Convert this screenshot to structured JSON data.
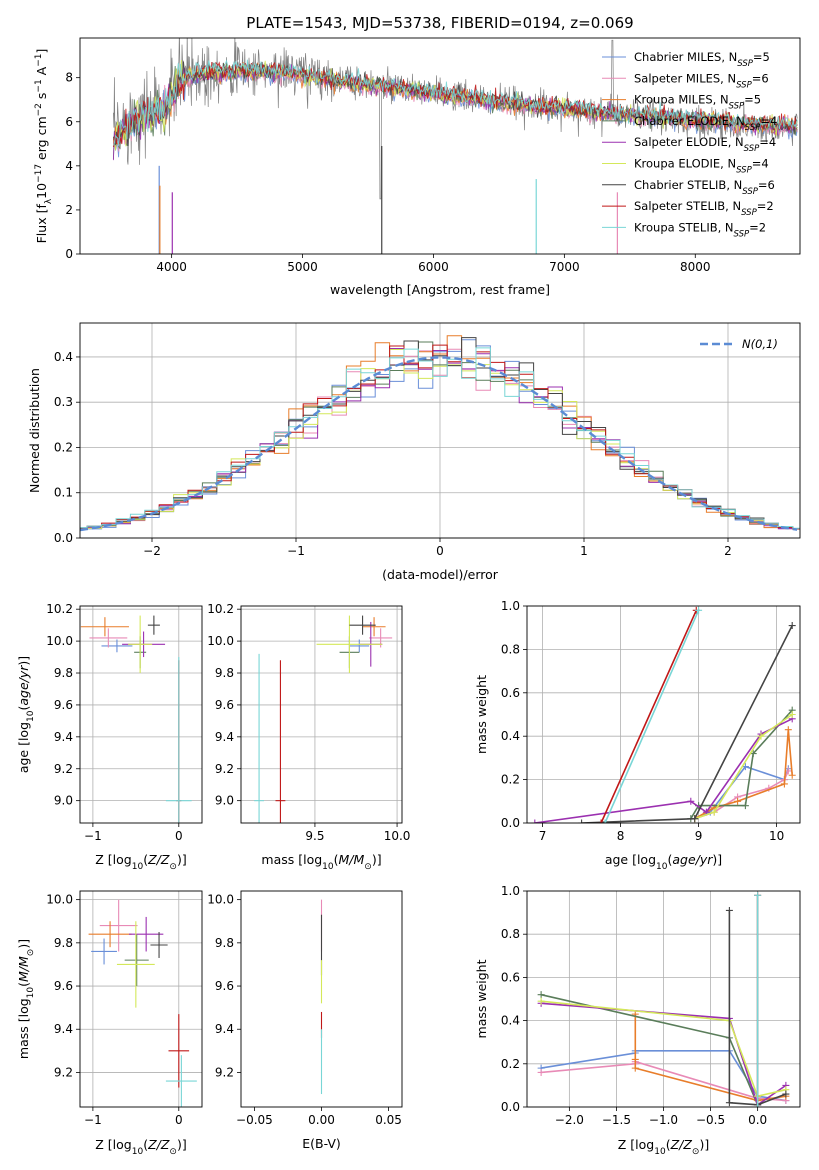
{
  "figure_title": "PLATE=1543, MJD=53738, FIBERID=0194, z=0.069",
  "models": [
    {
      "name": "Chabrier MILES",
      "nssp": "5",
      "color": "#6a8fd8"
    },
    {
      "name": "Salpeter MILES",
      "nssp": "6",
      "color": "#e88ab6"
    },
    {
      "name": "Kroupa MILES",
      "nssp": "5",
      "color": "#e87d2a"
    },
    {
      "name": "Chabrier ELODIE",
      "nssp": "4",
      "color": "#5a7d5a"
    },
    {
      "name": "Salpeter ELODIE",
      "nssp": "4",
      "color": "#9b30b0"
    },
    {
      "name": "Kroupa ELODIE",
      "nssp": "4",
      "color": "#d4e85a"
    },
    {
      "name": "Chabrier STELIB",
      "nssp": "6",
      "color": "#444444"
    },
    {
      "name": "Salpeter STELIB",
      "nssp": "2",
      "color": "#c01818"
    },
    {
      "name": "Kroupa STELIB",
      "nssp": "2",
      "color": "#79d6d6"
    }
  ],
  "nssp_prefix": "N",
  "nssp_sub": "SSP",
  "chart_data": [
    {
      "id": "spectrum",
      "type": "line",
      "xlabel": "wavelength [Angstrom, rest frame]",
      "ylabel": "Flux [f_λ 10^-17 erg cm^-2 s^-1 A^-1]",
      "xlim": [
        3300,
        8800
      ],
      "ylim": [
        0,
        9.8
      ],
      "xticks": [
        4000,
        5000,
        6000,
        7000,
        8000
      ],
      "yticks": [
        0,
        2,
        4,
        6,
        8
      ],
      "grid": false,
      "legend": "right",
      "data_color": "#808080",
      "data_knots": [
        [
          3550,
          5.4
        ],
        [
          3700,
          6.2
        ],
        [
          3800,
          6.6
        ],
        [
          3950,
          6.6
        ],
        [
          4050,
          7.9
        ],
        [
          4200,
          8.3
        ],
        [
          4500,
          8.4
        ],
        [
          4900,
          8.3
        ],
        [
          5200,
          8.0
        ],
        [
          5600,
          7.6
        ],
        [
          6000,
          7.3
        ],
        [
          6500,
          6.9
        ],
        [
          7000,
          6.6
        ],
        [
          7500,
          6.3
        ],
        [
          8000,
          6.0
        ],
        [
          8400,
          5.8
        ],
        [
          8700,
          5.7
        ]
      ],
      "model_knots": [
        [
          3550,
          5.0
        ],
        [
          3700,
          5.9
        ],
        [
          3800,
          6.3
        ],
        [
          3950,
          6.5
        ],
        [
          4050,
          7.8
        ],
        [
          4200,
          8.2
        ],
        [
          4500,
          8.3
        ],
        [
          4900,
          8.2
        ],
        [
          5200,
          7.9
        ],
        [
          5600,
          7.6
        ],
        [
          6000,
          7.3
        ],
        [
          6500,
          6.9
        ],
        [
          7000,
          6.6
        ],
        [
          7500,
          6.3
        ],
        [
          8000,
          6.1
        ],
        [
          8400,
          5.9
        ],
        [
          8700,
          5.8
        ]
      ]
    },
    {
      "id": "residuals",
      "type": "area",
      "xlabel": "(data-model)/error",
      "ylabel": "Normed distribution",
      "xlim": [
        -2.5,
        2.5
      ],
      "ylim": [
        0,
        0.475
      ],
      "xticks": [
        -2,
        -1,
        0,
        1,
        2
      ],
      "xticklabels": [
        "−2",
        "−1",
        "0",
        "1",
        "2"
      ],
      "yticks": [
        0,
        0.1,
        0.2,
        0.3,
        0.4
      ],
      "yticklabels": [
        "0.0",
        "0.1",
        "0.2",
        "0.3",
        "0.4"
      ],
      "grid": true,
      "legend": "top-right",
      "gaussian_label": "N(0,1)",
      "gaussian_color": "#5b8bd4",
      "bin_width": 0.1
    },
    {
      "id": "Z_age",
      "type": "scatter",
      "xlabel": "Z [log10(Z/Z⊙)]",
      "ylabel": "age [log10(age/yr)]",
      "xlim": [
        -1.15,
        0.27
      ],
      "ylim": [
        8.86,
        10.22
      ],
      "xticks": [
        -1,
        0
      ],
      "xticklabels": [
        "−1",
        "0"
      ],
      "yticks": [
        9.0,
        9.2,
        9.4,
        9.6,
        9.8,
        10.0,
        10.2
      ],
      "yticklabels": [
        "9.0",
        "9.2",
        "9.4",
        "9.6",
        "9.8",
        "10.0",
        "10.2"
      ],
      "grid": true,
      "points": [
        {
          "m": 0,
          "x": -0.72,
          "y": 9.97,
          "ex": 0.18,
          "ey": 0.04
        },
        {
          "m": 1,
          "x": -0.82,
          "y": 10.02,
          "ex": 0.22,
          "ey": 0.06
        },
        {
          "m": 2,
          "x": -0.86,
          "y": 10.09,
          "ex": 0.28,
          "ey": 0.06
        },
        {
          "m": 3,
          "x": -0.45,
          "y": 9.93,
          "ex": 0.07,
          "ey": 0.1
        },
        {
          "m": 4,
          "x": -0.41,
          "y": 9.98,
          "ex": 0.25,
          "ey": 0.08
        },
        {
          "m": 5,
          "x": -0.45,
          "y": 9.98,
          "ex": 0.14,
          "ey": 0.18
        },
        {
          "m": 6,
          "x": -0.29,
          "y": 10.1,
          "ex": 0.07,
          "ey": 0.06
        },
        {
          "m": 7,
          "x": 0.0,
          "y": 9.0,
          "ex": 0.03,
          "ey": 0.88
        },
        {
          "m": 8,
          "x": 0.0,
          "y": 9.0,
          "ex": 0.15,
          "ey": 0.9
        }
      ]
    },
    {
      "id": "mass_age",
      "type": "scatter",
      "xlabel": "mass [log10(M/M⊙)]",
      "ylabel": "",
      "xlim": [
        9.05,
        10.03
      ],
      "ylim": [
        8.86,
        10.22
      ],
      "xticks": [
        9.5,
        10.0
      ],
      "xticklabels": [
        "9.5",
        "10.0"
      ],
      "yticks": [
        9.0,
        9.2,
        9.4,
        9.6,
        9.8,
        10.0,
        10.2
      ],
      "yticklabels": [
        "9.0",
        "9.2",
        "9.4",
        "9.6",
        "9.8",
        "10.0",
        "10.2"
      ],
      "grid": true,
      "points": [
        {
          "m": 0,
          "x": 9.77,
          "y": 9.97,
          "ex": 0.06,
          "ey": 0.04
        },
        {
          "m": 1,
          "x": 9.9,
          "y": 10.02,
          "ex": 0.07,
          "ey": 0.06
        },
        {
          "m": 2,
          "x": 9.86,
          "y": 10.09,
          "ex": 0.07,
          "ey": 0.06
        },
        {
          "m": 3,
          "x": 9.71,
          "y": 9.93,
          "ex": 0.06,
          "ey": 0.1
        },
        {
          "m": 4,
          "x": 9.84,
          "y": 9.98,
          "ex": 0.07,
          "ey": 0.14
        },
        {
          "m": 5,
          "x": 9.71,
          "y": 9.98,
          "ex": 0.2,
          "ey": 0.18
        },
        {
          "m": 6,
          "x": 9.79,
          "y": 10.1,
          "ex": 0.08,
          "ey": 0.06
        },
        {
          "m": 7,
          "x": 9.29,
          "y": 9.0,
          "ex": 0.03,
          "ey": 0.88
        },
        {
          "m": 8,
          "x": 9.16,
          "y": 9.0,
          "ex": 0.03,
          "ey": 0.92
        }
      ]
    },
    {
      "id": "age_weight",
      "type": "line",
      "xlabel": "age [log10(age/yr)]",
      "ylabel": "mass weight",
      "xlim": [
        6.8,
        10.3
      ],
      "ylim": [
        0,
        1.0
      ],
      "xticks": [
        7,
        8,
        9,
        10
      ],
      "xticklabels": [
        "7",
        "8",
        "9",
        "10"
      ],
      "yticks": [
        0,
        0.2,
        0.4,
        0.6,
        0.8,
        1.0
      ],
      "yticklabels": [
        "0.0",
        "0.2",
        "0.4",
        "0.6",
        "0.8",
        "1.0"
      ],
      "grid": true,
      "series": [
        {
          "m": 0,
          "x": [
            8.95,
            9.15,
            9.6,
            10.1,
            10.15
          ],
          "y": [
            0.02,
            0.05,
            0.26,
            0.2,
            0.25
          ]
        },
        {
          "m": 1,
          "x": [
            8.95,
            9.2,
            9.5,
            9.9,
            10.1,
            10.15
          ],
          "y": [
            0.02,
            0.05,
            0.12,
            0.16,
            0.2,
            0.24
          ]
        },
        {
          "m": 2,
          "x": [
            8.95,
            9.2,
            9.5,
            10.1,
            10.15,
            10.2
          ],
          "y": [
            0.02,
            0.07,
            0.1,
            0.18,
            0.43,
            0.22
          ]
        },
        {
          "m": 3,
          "x": [
            8.9,
            9.0,
            9.6,
            9.7,
            10.2
          ],
          "y": [
            0.02,
            0.08,
            0.08,
            0.32,
            0.52
          ]
        },
        {
          "m": 4,
          "x": [
            6.9,
            8.9,
            9.1,
            9.8,
            10.2
          ],
          "y": [
            0.0,
            0.1,
            0.05,
            0.41,
            0.48
          ]
        },
        {
          "m": 5,
          "x": [
            8.95,
            9.2,
            9.8,
            10.2
          ],
          "y": [
            0.02,
            0.05,
            0.4,
            0.5
          ]
        },
        {
          "m": 6,
          "x": [
            7.5,
            8.95,
            10.2
          ],
          "y": [
            0.0,
            0.02,
            0.91
          ]
        },
        {
          "m": 7,
          "x": [
            7.75,
            8.97
          ],
          "y": [
            0.0,
            0.98
          ]
        },
        {
          "m": 8,
          "x": [
            7.8,
            9.0
          ],
          "y": [
            0.0,
            0.98
          ]
        }
      ]
    },
    {
      "id": "Z_mass",
      "type": "scatter",
      "xlabel": "Z [log10(Z/Z⊙)]",
      "ylabel": "mass [log10(M/M⊙)]",
      "xlim": [
        -1.15,
        0.27
      ],
      "ylim": [
        9.04,
        10.04
      ],
      "xticks": [
        -1,
        0
      ],
      "xticklabels": [
        "−1",
        "0"
      ],
      "yticks": [
        9.2,
        9.4,
        9.6,
        9.8,
        10.0
      ],
      "yticklabels": [
        "9.2",
        "9.4",
        "9.6",
        "9.8",
        "10.0"
      ],
      "grid": true,
      "points": [
        {
          "m": 0,
          "x": -0.87,
          "y": 9.76,
          "ex": 0.15,
          "ey": 0.06
        },
        {
          "m": 1,
          "x": -0.7,
          "y": 9.88,
          "ex": 0.22,
          "ey": 0.12
        },
        {
          "m": 2,
          "x": -0.8,
          "y": 9.84,
          "ex": 0.25,
          "ey": 0.06
        },
        {
          "m": 3,
          "x": -0.49,
          "y": 9.72,
          "ex": 0.14,
          "ey": 0.12
        },
        {
          "m": 4,
          "x": -0.38,
          "y": 9.84,
          "ex": 0.2,
          "ey": 0.08
        },
        {
          "m": 5,
          "x": -0.5,
          "y": 9.7,
          "ex": 0.22,
          "ey": 0.2
        },
        {
          "m": 6,
          "x": -0.23,
          "y": 9.79,
          "ex": 0.1,
          "ey": 0.06
        },
        {
          "m": 7,
          "x": 0.0,
          "y": 9.3,
          "ex": 0.12,
          "ey": 0.17
        },
        {
          "m": 8,
          "x": 0.03,
          "y": 9.16,
          "ex": 0.18,
          "ey": 0.12
        }
      ]
    },
    {
      "id": "ebv_mass",
      "type": "scatter",
      "xlabel": "E(B-V)",
      "ylabel": "",
      "xlim": [
        -0.06,
        0.06
      ],
      "ylim": [
        9.04,
        10.04
      ],
      "xticks": [
        -0.05,
        0,
        0.05
      ],
      "xticklabels": [
        "−0.05",
        "0.00",
        "0.05"
      ],
      "yticks": [
        9.2,
        9.4,
        9.6,
        9.8,
        10.0
      ],
      "yticklabels": [
        "9.2",
        "9.4",
        "9.6",
        "9.8",
        "10.0"
      ],
      "grid": false,
      "points": [
        {
          "m": 1,
          "x": 0.0,
          "y": 9.88,
          "ex": 0,
          "ey": 0.12
        },
        {
          "m": 6,
          "x": 0.0,
          "y": 9.79,
          "ex": 0,
          "ey": 0.14
        },
        {
          "m": 5,
          "x": 0.0,
          "y": 9.62,
          "ex": 0,
          "ey": 0.1
        },
        {
          "m": 7,
          "x": 0.0,
          "y": 9.42,
          "ex": 0,
          "ey": 0.06
        },
        {
          "m": 8,
          "x": 0.0,
          "y": 9.25,
          "ex": 0,
          "ey": 0.15
        }
      ]
    },
    {
      "id": "Z_weight",
      "type": "line",
      "xlabel": "Z [log10(Z/Z⊙)]",
      "ylabel": "mass weight",
      "xlim": [
        -2.45,
        0.45
      ],
      "ylim": [
        0,
        1.0
      ],
      "xticks": [
        -2.0,
        -1.5,
        -1.0,
        -0.5,
        0.0
      ],
      "xticklabels": [
        "−2.0",
        "−1.5",
        "−1.0",
        "−0.5",
        "0.0"
      ],
      "yticks": [
        0,
        0.2,
        0.4,
        0.6,
        0.8,
        1.0
      ],
      "yticklabels": [
        "0.0",
        "0.2",
        "0.4",
        "0.6",
        "0.8",
        "1.0"
      ],
      "grid": true,
      "series": [
        {
          "m": 0,
          "x": [
            -2.3,
            -1.3,
            -1.3,
            -0.3,
            0.0,
            0.3
          ],
          "y": [
            0.18,
            0.25,
            0.26,
            0.26,
            0.05,
            0.03
          ]
        },
        {
          "m": 1,
          "x": [
            -2.3,
            -1.3,
            -1.3,
            0.0,
            0.3
          ],
          "y": [
            0.16,
            0.2,
            0.21,
            0.04,
            0.03
          ]
        },
        {
          "m": 2,
          "x": [
            -1.3,
            -1.3,
            -1.3,
            0.0,
            0.3
          ],
          "y": [
            0.43,
            0.22,
            0.18,
            0.03,
            0.05
          ]
        },
        {
          "m": 3,
          "x": [
            -2.3,
            -0.3,
            0.0
          ],
          "y": [
            0.52,
            0.32,
            0.01
          ]
        },
        {
          "m": 4,
          "x": [
            -2.3,
            -0.3,
            0.0,
            0.3
          ],
          "y": [
            0.48,
            0.41,
            0.01,
            0.1
          ]
        },
        {
          "m": 5,
          "x": [
            -2.3,
            -0.3,
            0.0,
            0.3
          ],
          "y": [
            0.49,
            0.4,
            0.05,
            0.08
          ]
        },
        {
          "m": 6,
          "x": [
            -0.3,
            -0.3,
            0.0,
            0.3
          ],
          "y": [
            0.91,
            0.02,
            0.01,
            0.06
          ]
        },
        {
          "m": 7,
          "x": [
            0.0,
            0.0
          ],
          "y": [
            0.0,
            0.98
          ]
        },
        {
          "m": 8,
          "x": [
            0.0,
            0.0
          ],
          "y": [
            0.0,
            0.98
          ]
        }
      ]
    }
  ]
}
